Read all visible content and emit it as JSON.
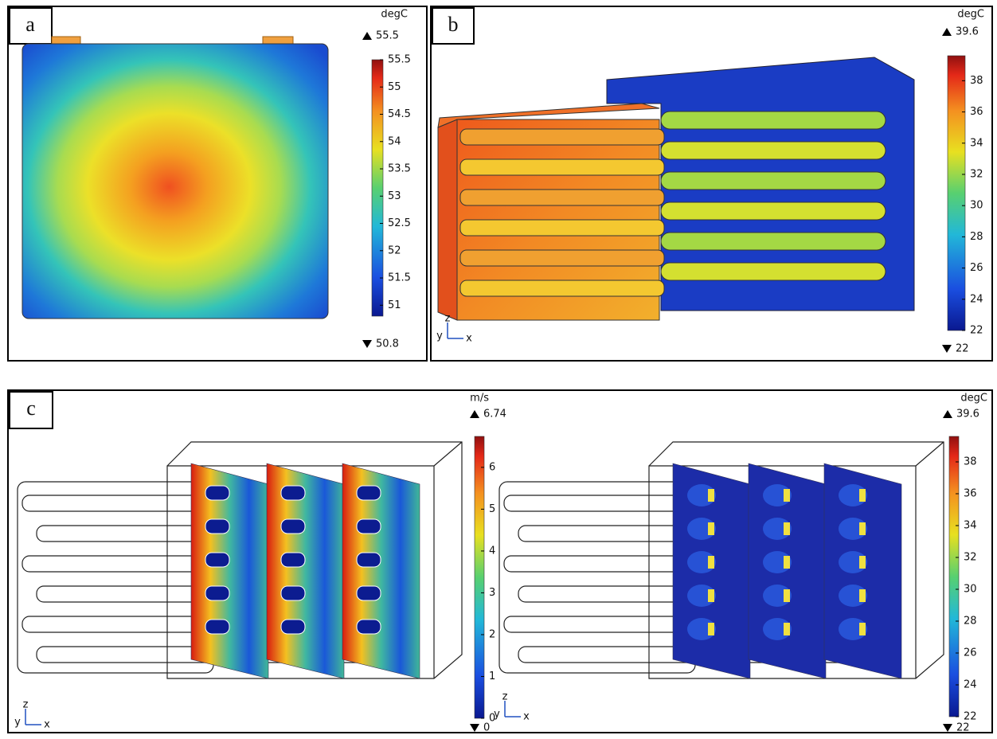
{
  "panels": [
    {
      "label": "a",
      "views": [
        {
          "colorbar": {
            "unit": "degC",
            "max": 55.5,
            "min": 50.8,
            "ticks": [
              51,
              51.5,
              52,
              52.5,
              53,
              53.5,
              54,
              54.5,
              55,
              55.5
            ]
          }
        }
      ]
    },
    {
      "label": "b",
      "views": [
        {
          "colorbar": {
            "unit": "degC",
            "max": 39.6,
            "min": 22,
            "ticks": [
              22,
              24,
              26,
              28,
              30,
              32,
              34,
              36,
              38
            ]
          },
          "axis_labels": [
            "z",
            "y",
            "x"
          ]
        }
      ]
    },
    {
      "label": "c",
      "views": [
        {
          "colorbar": {
            "unit": "m/s",
            "max": 6.74,
            "min": 0,
            "ticks": [
              0,
              1,
              2,
              3,
              4,
              5,
              6
            ]
          },
          "axis_labels": [
            "z",
            "y",
            "x"
          ]
        },
        {
          "colorbar": {
            "unit": "degC",
            "max": 39.6,
            "min": 22,
            "ticks": [
              22,
              24,
              26,
              28,
              30,
              32,
              34,
              36,
              38
            ]
          },
          "axis_labels": [
            "z",
            "y",
            "x"
          ]
        }
      ]
    }
  ]
}
